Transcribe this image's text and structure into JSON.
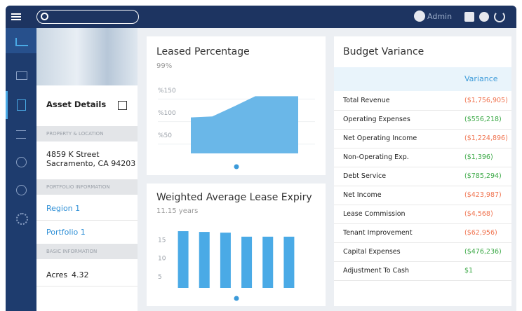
{
  "topbar": {
    "user": "Admin"
  },
  "asset_panel": {
    "title": "Asset Details",
    "property_heading": "PROPERTY & LOCATION",
    "address": [
      "4859 K Street",
      "Sacramento, CA 94203"
    ],
    "portfolio_heading": "PORTFOLIO INFORMATION",
    "links": [
      "Region 1",
      "Portfolio 1"
    ],
    "basic_heading": "BASIC INFORMATION",
    "fields": [
      {
        "label": "Acres",
        "value": "4.32"
      }
    ]
  },
  "leased_percentage": {
    "title": "Leased Percentage",
    "value": "99%",
    "chart": {
      "type": "area",
      "color": "#6ab7e8",
      "categories": [
        null,
        null,
        null,
        null,
        null,
        null
      ],
      "values": [
        100,
        102,
        124,
        147,
        147,
        147
      ],
      "ylim": [
        20,
        160
      ],
      "yticks": [
        {
          "value": 50,
          "label": "%50"
        },
        {
          "value": 100,
          "label": "%100"
        },
        {
          "value": 150,
          "label": "%150"
        }
      ],
      "grid": true
    }
  },
  "lease_expiry": {
    "title": "Weighted Average Lease Expiry",
    "value": "11.15 years",
    "chart": {
      "type": "bar",
      "color": "#4aaae6",
      "categories": [
        null,
        null,
        null,
        null,
        null,
        null
      ],
      "values": [
        17.5,
        17.3,
        17.1,
        16,
        16,
        16
      ],
      "ylim": [
        2,
        20
      ],
      "yticks": [
        5,
        10,
        15
      ],
      "grid": false
    }
  },
  "budget_variance": {
    "title": "Budget Variance",
    "column": "Variance",
    "rows": [
      {
        "label": "Total Revenue",
        "value": "($1,756,905)",
        "color": "#f0734f"
      },
      {
        "label": "Operating Expenses",
        "value": "($556,218)",
        "color": "#3aa845"
      },
      {
        "label": "Net Operating Income",
        "value": "($1,224,896)",
        "color": "#f0734f"
      },
      {
        "label": "Non-Operating Exp.",
        "value": "($1,396)",
        "color": "#3aa845"
      },
      {
        "label": "Debt Service",
        "value": "($785,294)",
        "color": "#3aa845"
      },
      {
        "label": "Net Income",
        "value": "($423,987)",
        "color": "#f0734f"
      },
      {
        "label": "Lease Commission",
        "value": "($4,568)",
        "color": "#f0734f"
      },
      {
        "label": "Tenant Improvement",
        "value": "($62,956)",
        "color": "#f0734f"
      },
      {
        "label": "Capital Expenses",
        "value": "($476,236)",
        "color": "#3aa845"
      },
      {
        "label": "Adjustment To Cash",
        "value": "$1",
        "color": "#3aa845"
      }
    ]
  }
}
